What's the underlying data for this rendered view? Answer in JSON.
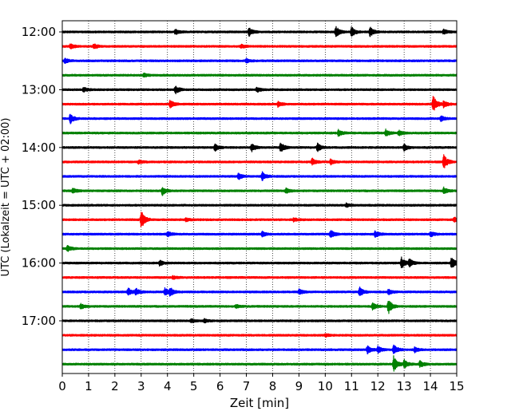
{
  "chart_data": {
    "type": "line",
    "title": "",
    "xlabel": "Zeit  [min]",
    "ylabel": "UTC (Lokalzeit = UTC + 02:00)",
    "xlim": [
      0,
      15
    ],
    "x_ticks": [
      "0",
      "1",
      "2",
      "3",
      "4",
      "5",
      "6",
      "7",
      "8",
      "9",
      "10",
      "11",
      "12",
      "13",
      "14",
      "15"
    ],
    "y_ticks": [
      "12:00",
      "13:00",
      "14:00",
      "15:00",
      "16:00",
      "17:00"
    ],
    "grid": "vertical-dotted",
    "trace_colors": [
      "#000000",
      "#ff0000",
      "#0000ff",
      "#008000"
    ],
    "series": [
      {
        "time": "12:00",
        "color": "#000000",
        "events": [
          {
            "x": 4.3,
            "a": 0.3
          },
          {
            "x": 7.1,
            "a": 0.5
          },
          {
            "x": 10.4,
            "a": 0.7
          },
          {
            "x": 11.0,
            "a": 0.6
          },
          {
            "x": 11.7,
            "a": 0.6
          },
          {
            "x": 14.5,
            "a": 0.3
          }
        ]
      },
      {
        "time": "12:15",
        "color": "#ff0000",
        "events": [
          {
            "x": 0.3,
            "a": 0.3
          },
          {
            "x": 1.2,
            "a": 0.3
          },
          {
            "x": 6.8,
            "a": 0.2
          }
        ]
      },
      {
        "time": "12:30",
        "color": "#0000ff",
        "events": [
          {
            "x": 0.1,
            "a": 0.3
          },
          {
            "x": 7.0,
            "a": 0.2
          }
        ]
      },
      {
        "time": "12:45",
        "color": "#008000",
        "events": [
          {
            "x": 3.1,
            "a": 0.2
          }
        ]
      },
      {
        "time": "13:00",
        "color": "#000000",
        "events": [
          {
            "x": 0.8,
            "a": 0.3
          },
          {
            "x": 4.3,
            "a": 0.5
          },
          {
            "x": 7.4,
            "a": 0.3
          }
        ]
      },
      {
        "time": "13:15",
        "color": "#ff0000",
        "events": [
          {
            "x": 4.1,
            "a": 0.5
          },
          {
            "x": 8.2,
            "a": 0.3
          },
          {
            "x": 14.1,
            "a": 1.1
          },
          {
            "x": 14.5,
            "a": 0.4
          }
        ]
      },
      {
        "time": "13:30",
        "color": "#0000ff",
        "events": [
          {
            "x": 0.3,
            "a": 0.6
          },
          {
            "x": 14.4,
            "a": 0.3
          }
        ]
      },
      {
        "time": "13:45",
        "color": "#008000",
        "events": [
          {
            "x": 10.5,
            "a": 0.4
          },
          {
            "x": 12.3,
            "a": 0.4
          },
          {
            "x": 12.8,
            "a": 0.3
          }
        ]
      },
      {
        "time": "14:00",
        "color": "#000000",
        "events": [
          {
            "x": 5.8,
            "a": 0.4
          },
          {
            "x": 7.2,
            "a": 0.5
          },
          {
            "x": 8.3,
            "a": 0.6
          },
          {
            "x": 9.7,
            "a": 0.5
          },
          {
            "x": 13.0,
            "a": 0.4
          }
        ]
      },
      {
        "time": "14:15",
        "color": "#ff0000",
        "events": [
          {
            "x": 2.9,
            "a": 0.2
          },
          {
            "x": 9.5,
            "a": 0.4
          },
          {
            "x": 10.2,
            "a": 0.3
          },
          {
            "x": 14.5,
            "a": 0.9
          }
        ]
      },
      {
        "time": "14:30",
        "color": "#0000ff",
        "events": [
          {
            "x": 6.7,
            "a": 0.4
          },
          {
            "x": 7.6,
            "a": 0.5
          }
        ]
      },
      {
        "time": "14:45",
        "color": "#008000",
        "events": [
          {
            "x": 0.4,
            "a": 0.3
          },
          {
            "x": 3.8,
            "a": 0.5
          },
          {
            "x": 8.5,
            "a": 0.3
          },
          {
            "x": 14.5,
            "a": 0.4
          }
        ]
      },
      {
        "time": "15:00",
        "color": "#000000",
        "events": [
          {
            "x": 10.8,
            "a": 0.2
          }
        ]
      },
      {
        "time": "15:15",
        "color": "#ff0000",
        "events": [
          {
            "x": 3.0,
            "a": 1.1
          },
          {
            "x": 4.7,
            "a": 0.2
          },
          {
            "x": 8.8,
            "a": 0.2
          },
          {
            "x": 14.9,
            "a": 0.3
          }
        ]
      },
      {
        "time": "15:30",
        "color": "#0000ff",
        "events": [
          {
            "x": 4.0,
            "a": 0.3
          },
          {
            "x": 7.6,
            "a": 0.3
          },
          {
            "x": 10.2,
            "a": 0.5
          },
          {
            "x": 11.9,
            "a": 0.4
          },
          {
            "x": 14.0,
            "a": 0.3
          }
        ]
      },
      {
        "time": "15:45",
        "color": "#008000",
        "events": [
          {
            "x": 0.2,
            "a": 0.4
          }
        ]
      },
      {
        "time": "16:00",
        "color": "#000000",
        "events": [
          {
            "x": 3.7,
            "a": 0.3
          },
          {
            "x": 12.9,
            "a": 0.7
          },
          {
            "x": 13.2,
            "a": 0.5
          },
          {
            "x": 14.8,
            "a": 0.7
          }
        ]
      },
      {
        "time": "16:15",
        "color": "#ff0000",
        "events": [
          {
            "x": 4.2,
            "a": 0.2
          }
        ]
      },
      {
        "time": "16:30",
        "color": "#0000ff",
        "events": [
          {
            "x": 2.5,
            "a": 0.5
          },
          {
            "x": 2.8,
            "a": 0.4
          },
          {
            "x": 3.9,
            "a": 0.5
          },
          {
            "x": 4.1,
            "a": 0.5
          },
          {
            "x": 9.0,
            "a": 0.3
          },
          {
            "x": 11.3,
            "a": 0.6
          },
          {
            "x": 12.4,
            "a": 0.3
          }
        ]
      },
      {
        "time": "16:45",
        "color": "#008000",
        "events": [
          {
            "x": 0.7,
            "a": 0.3
          },
          {
            "x": 6.6,
            "a": 0.2
          },
          {
            "x": 11.8,
            "a": 0.5
          },
          {
            "x": 12.4,
            "a": 0.9
          }
        ]
      },
      {
        "time": "17:00",
        "color": "#000000",
        "events": [
          {
            "x": 4.9,
            "a": 0.2
          },
          {
            "x": 5.4,
            "a": 0.2
          }
        ]
      },
      {
        "time": "17:15",
        "color": "#ff0000",
        "events": [
          {
            "x": 10.0,
            "a": 0.2
          }
        ]
      },
      {
        "time": "17:30",
        "color": "#0000ff",
        "events": [
          {
            "x": 11.6,
            "a": 0.5
          },
          {
            "x": 12.0,
            "a": 0.4
          },
          {
            "x": 12.6,
            "a": 0.6
          },
          {
            "x": 13.4,
            "a": 0.3
          }
        ]
      },
      {
        "time": "17:45",
        "color": "#008000",
        "events": [
          {
            "x": 12.6,
            "a": 1.0
          },
          {
            "x": 13.0,
            "a": 0.5
          },
          {
            "x": 13.6,
            "a": 0.4
          }
        ]
      }
    ]
  }
}
